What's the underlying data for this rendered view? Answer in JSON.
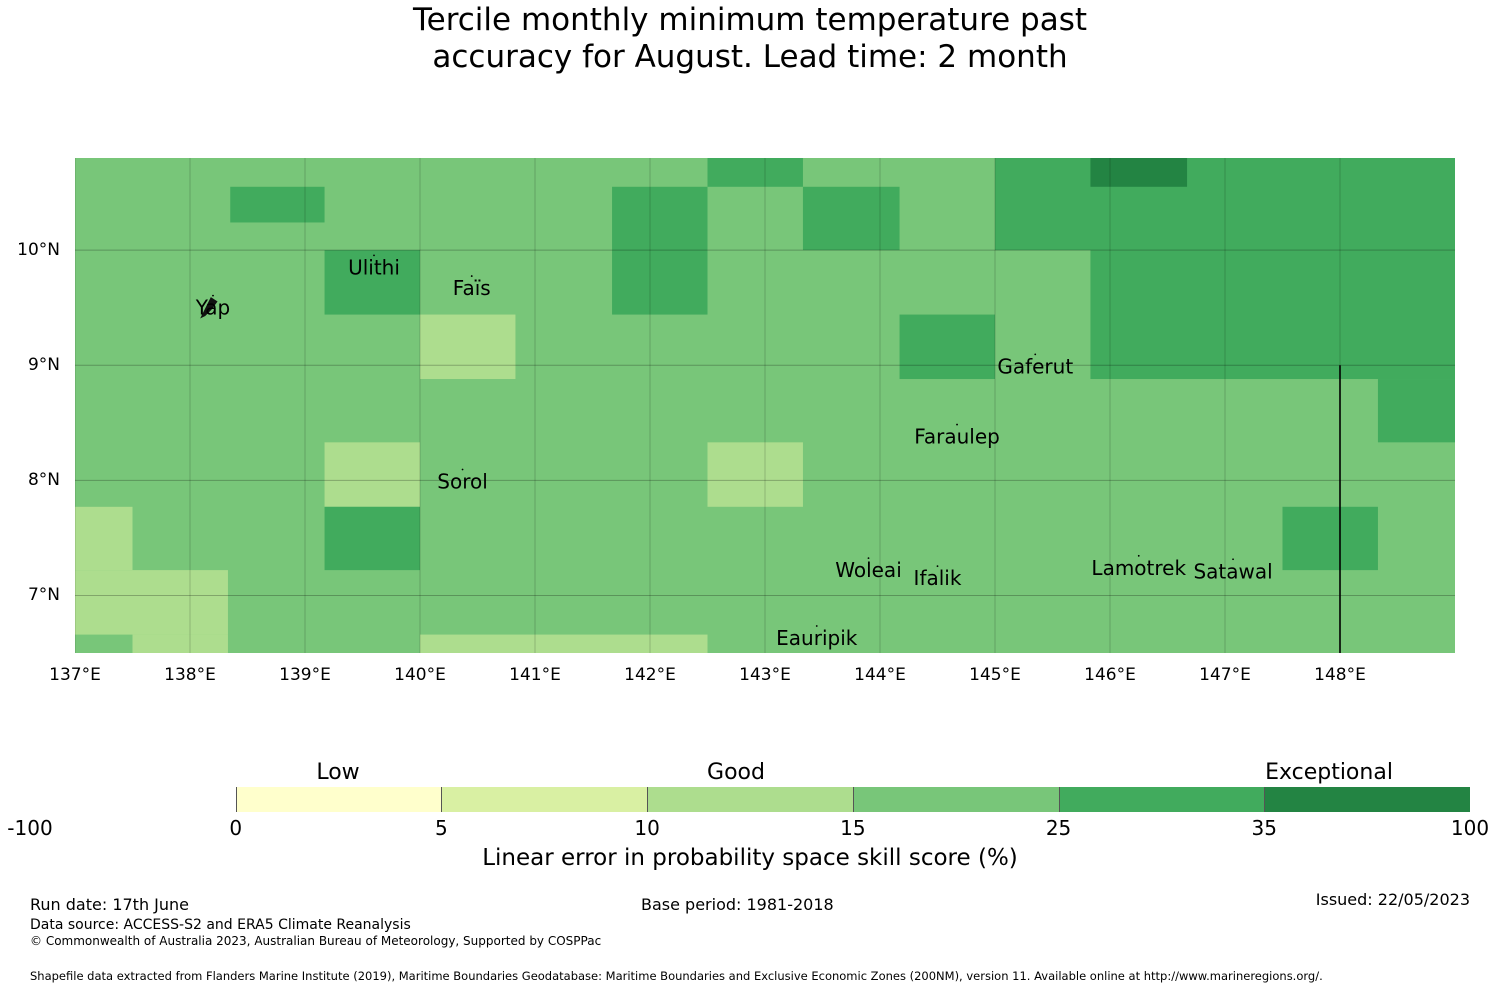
{
  "title_line1": "Tercile monthly minimum temperature past",
  "title_line2": "accuracy for August. Lead time: 2 month",
  "map": {
    "lon_range": [
      137,
      149
    ],
    "lat_range": [
      6.5,
      10.8
    ],
    "x_ticks": [
      "137°E",
      "138°E",
      "139°E",
      "140°E",
      "141°E",
      "142°E",
      "143°E",
      "144°E",
      "145°E",
      "146°E",
      "147°E",
      "148°E"
    ],
    "y_ticks": [
      "10°N",
      "9°N",
      "8°N",
      "7°N"
    ],
    "cells": [
      {
        "lon": [
          137,
          149
        ],
        "lat": [
          6.5,
          10.8
        ],
        "color": "#78c679"
      },
      {
        "lon": [
          138.35,
          139.17
        ],
        "lat": [
          10.24,
          10.55
        ],
        "color": "#41ab5d"
      },
      {
        "lon": [
          139.17,
          140.0
        ],
        "lat": [
          9.44,
          10.0
        ],
        "color": "#41ab5d"
      },
      {
        "lon": [
          140.0,
          140.83
        ],
        "lat": [
          8.88,
          9.44
        ],
        "color": "#addd8e"
      },
      {
        "lon": [
          141.67,
          142.5
        ],
        "lat": [
          9.44,
          10.55
        ],
        "color": "#41ab5d"
      },
      {
        "lon": [
          142.5,
          143.33
        ],
        "lat": [
          10.55,
          10.8
        ],
        "color": "#41ab5d"
      },
      {
        "lon": [
          143.33,
          144.17
        ],
        "lat": [
          10.0,
          10.55
        ],
        "color": "#41ab5d"
      },
      {
        "lon": [
          144.17,
          145.0
        ],
        "lat": [
          8.88,
          9.44
        ],
        "color": "#41ab5d"
      },
      {
        "lon": [
          145.0,
          149.0
        ],
        "lat": [
          10.0,
          10.8
        ],
        "color": "#41ab5d"
      },
      {
        "lon": [
          145.83,
          149.0
        ],
        "lat": [
          8.88,
          10.0
        ],
        "color": "#41ab5d"
      },
      {
        "lon": [
          148.33,
          149.0
        ],
        "lat": [
          8.33,
          8.88
        ],
        "color": "#41ab5d"
      },
      {
        "lon": [
          145.83,
          146.67
        ],
        "lat": [
          10.55,
          10.8
        ],
        "color": "#238443"
      },
      {
        "lon": [
          139.17,
          140.0
        ],
        "lat": [
          7.77,
          8.33
        ],
        "color": "#addd8e"
      },
      {
        "lon": [
          142.5,
          143.33
        ],
        "lat": [
          7.77,
          8.33
        ],
        "color": "#addd8e"
      },
      {
        "lon": [
          139.17,
          140.0
        ],
        "lat": [
          7.22,
          7.77
        ],
        "color": "#41ab5d"
      },
      {
        "lon": [
          147.5,
          148.33
        ],
        "lat": [
          7.22,
          7.77
        ],
        "color": "#41ab5d"
      },
      {
        "lon": [
          137.0,
          137.5
        ],
        "lat": [
          7.22,
          7.77
        ],
        "color": "#addd8e"
      },
      {
        "lon": [
          137.0,
          138.33
        ],
        "lat": [
          6.66,
          7.22
        ],
        "color": "#addd8e"
      },
      {
        "lon": [
          137.5,
          138.33
        ],
        "lat": [
          6.5,
          6.66
        ],
        "color": "#addd8e"
      },
      {
        "lon": [
          140.0,
          142.5
        ],
        "lat": [
          6.5,
          6.66
        ],
        "color": "#addd8e"
      }
    ],
    "boundary_line": {
      "lon": 148,
      "lat": [
        6.5,
        9.0
      ]
    },
    "islands": [
      {
        "name": "Yap",
        "lon": 138.2,
        "lat": 9.5
      },
      {
        "name": "Ulithi",
        "lon": 139.6,
        "lat": 9.85
      },
      {
        "name": "Faïs",
        "lon": 140.45,
        "lat": 9.67
      },
      {
        "name": "Gaferut",
        "lon": 145.35,
        "lat": 8.99
      },
      {
        "name": "Faraulep",
        "lon": 144.67,
        "lat": 8.38
      },
      {
        "name": "Sorol",
        "lon": 140.37,
        "lat": 7.99
      },
      {
        "name": "Woleai",
        "lon": 143.9,
        "lat": 7.22
      },
      {
        "name": "Ifalik",
        "lon": 144.5,
        "lat": 7.15
      },
      {
        "name": "Lamotrek",
        "lon": 146.25,
        "lat": 7.24
      },
      {
        "name": "Satawal",
        "lon": 147.07,
        "lat": 7.21
      },
      {
        "name": "Eauripik",
        "lon": 143.45,
        "lat": 6.63
      }
    ],
    "colors": {
      "grid": "#000000",
      "boundary": "#000000"
    }
  },
  "colorbar": {
    "ticks": [
      "-100",
      "0",
      "5",
      "10",
      "15",
      "25",
      "35",
      "100"
    ],
    "colors": [
      "#ffffff",
      "#ffffcc",
      "#d9f0a3",
      "#addd8e",
      "#78c679",
      "#41ab5d",
      "#238443"
    ],
    "categories": [
      "Low",
      "Good",
      "Exceptional"
    ],
    "label": "Linear error in probability space skill score (%)"
  },
  "footer": {
    "run_date": "Run date: 17th June",
    "base_period": "Base period: 1981-2018",
    "issued": "Issued: 22/05/2023",
    "data_source": "Data source: ACCESS-S2 and ERA5 Climate Reanalysis",
    "copyright": "© Commonwealth of Australia 2023, Australian Bureau of Meteorology, Supported by COSPPac",
    "shapefile": "Shapefile data extracted from Flanders Marine Institute (2019), Maritime Boundaries Geodatabase: Maritime Boundaries and Exclusive Economic Zones (200NM), version 11. Available online at http://www.marineregions.org/."
  }
}
